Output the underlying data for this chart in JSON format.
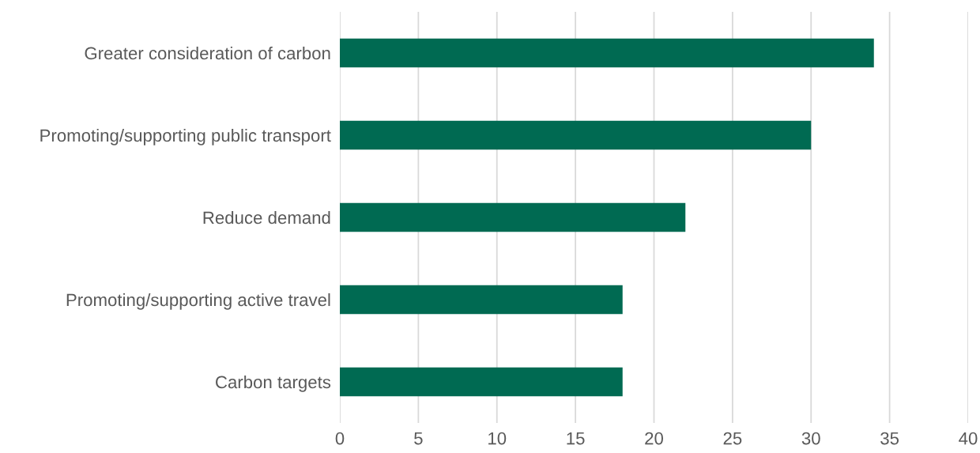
{
  "chart_data": {
    "type": "bar",
    "orientation": "horizontal",
    "categories": [
      "Greater consideration of carbon",
      "Promoting/supporting public transport",
      "Reduce demand",
      "Promoting/supporting active travel",
      "Carbon targets"
    ],
    "values": [
      34,
      30,
      22,
      18,
      18
    ],
    "color": "#006a52",
    "xlim": [
      0,
      40
    ],
    "xticks": [
      0,
      5,
      10,
      15,
      20,
      25,
      30,
      35,
      40
    ],
    "grid": "x",
    "legend": false
  }
}
